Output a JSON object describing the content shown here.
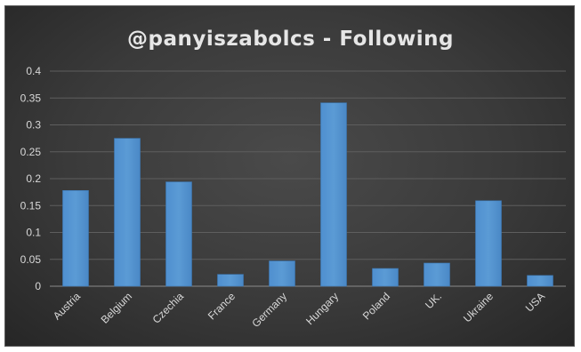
{
  "chart_data": {
    "type": "bar",
    "title": "@panyiszabolcs - Following",
    "categories": [
      "Austria",
      "Belgium",
      "Czechia",
      "France",
      "Germany",
      "Hungary",
      "Poland",
      "UK.",
      "Ukraine",
      "USA"
    ],
    "values": [
      0.178,
      0.275,
      0.194,
      0.022,
      0.047,
      0.341,
      0.033,
      0.043,
      0.159,
      0.02
    ],
    "ylim": [
      0,
      0.4
    ],
    "yticks": [
      "0",
      "0.05",
      "0.1",
      "0.15",
      "0.2",
      "0.25",
      "0.3",
      "0.35",
      "0.4"
    ],
    "grid": true,
    "bar_color": "#5b9bd5",
    "background_color": "#3c3c3c"
  }
}
